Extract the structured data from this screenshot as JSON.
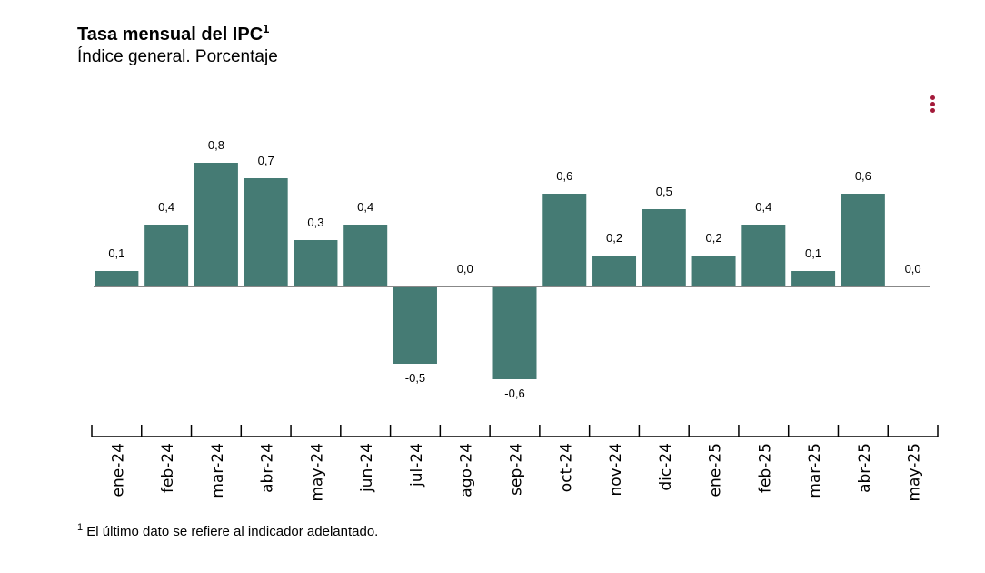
{
  "header": {
    "title": "Tasa mensual del IPC",
    "title_sup": "1",
    "subtitle": "Índice general. Porcentaje"
  },
  "menu": {
    "icon": "kebab-menu-icon",
    "color": "#a31a3a"
  },
  "footnote": {
    "marker": "1",
    "text": "El último dato se refiere al indicador adelantado."
  },
  "chart_data": {
    "type": "bar",
    "categories": [
      "ene-24",
      "feb-24",
      "mar-24",
      "abr-24",
      "may-24",
      "jun-24",
      "jul-24",
      "ago-24",
      "sep-24",
      "oct-24",
      "nov-24",
      "dic-24",
      "ene-25",
      "feb-25",
      "mar-25",
      "abr-25",
      "may-25"
    ],
    "values": [
      0.1,
      0.4,
      0.8,
      0.7,
      0.3,
      0.4,
      -0.5,
      0.0,
      -0.6,
      0.6,
      0.2,
      0.5,
      0.2,
      0.4,
      0.1,
      0.6,
      0.0
    ],
    "data_labels": [
      "0,1",
      "0,4",
      "0,8",
      "0,7",
      "0,3",
      "0,4",
      "-0,5",
      "0,0",
      "-0,6",
      "0,6",
      "0,2",
      "0,5",
      "0,2",
      "0,4",
      "0,1",
      "0,6",
      "0,0"
    ],
    "title": "Tasa mensual del IPC",
    "subtitle": "Índice general. Porcentaje",
    "xlabel": "",
    "ylabel": "",
    "ylim": [
      -0.6,
      0.8
    ],
    "grid": false,
    "colors": {
      "bar": "#457b74",
      "zero_line": "#888888",
      "axis": "#000000"
    }
  }
}
